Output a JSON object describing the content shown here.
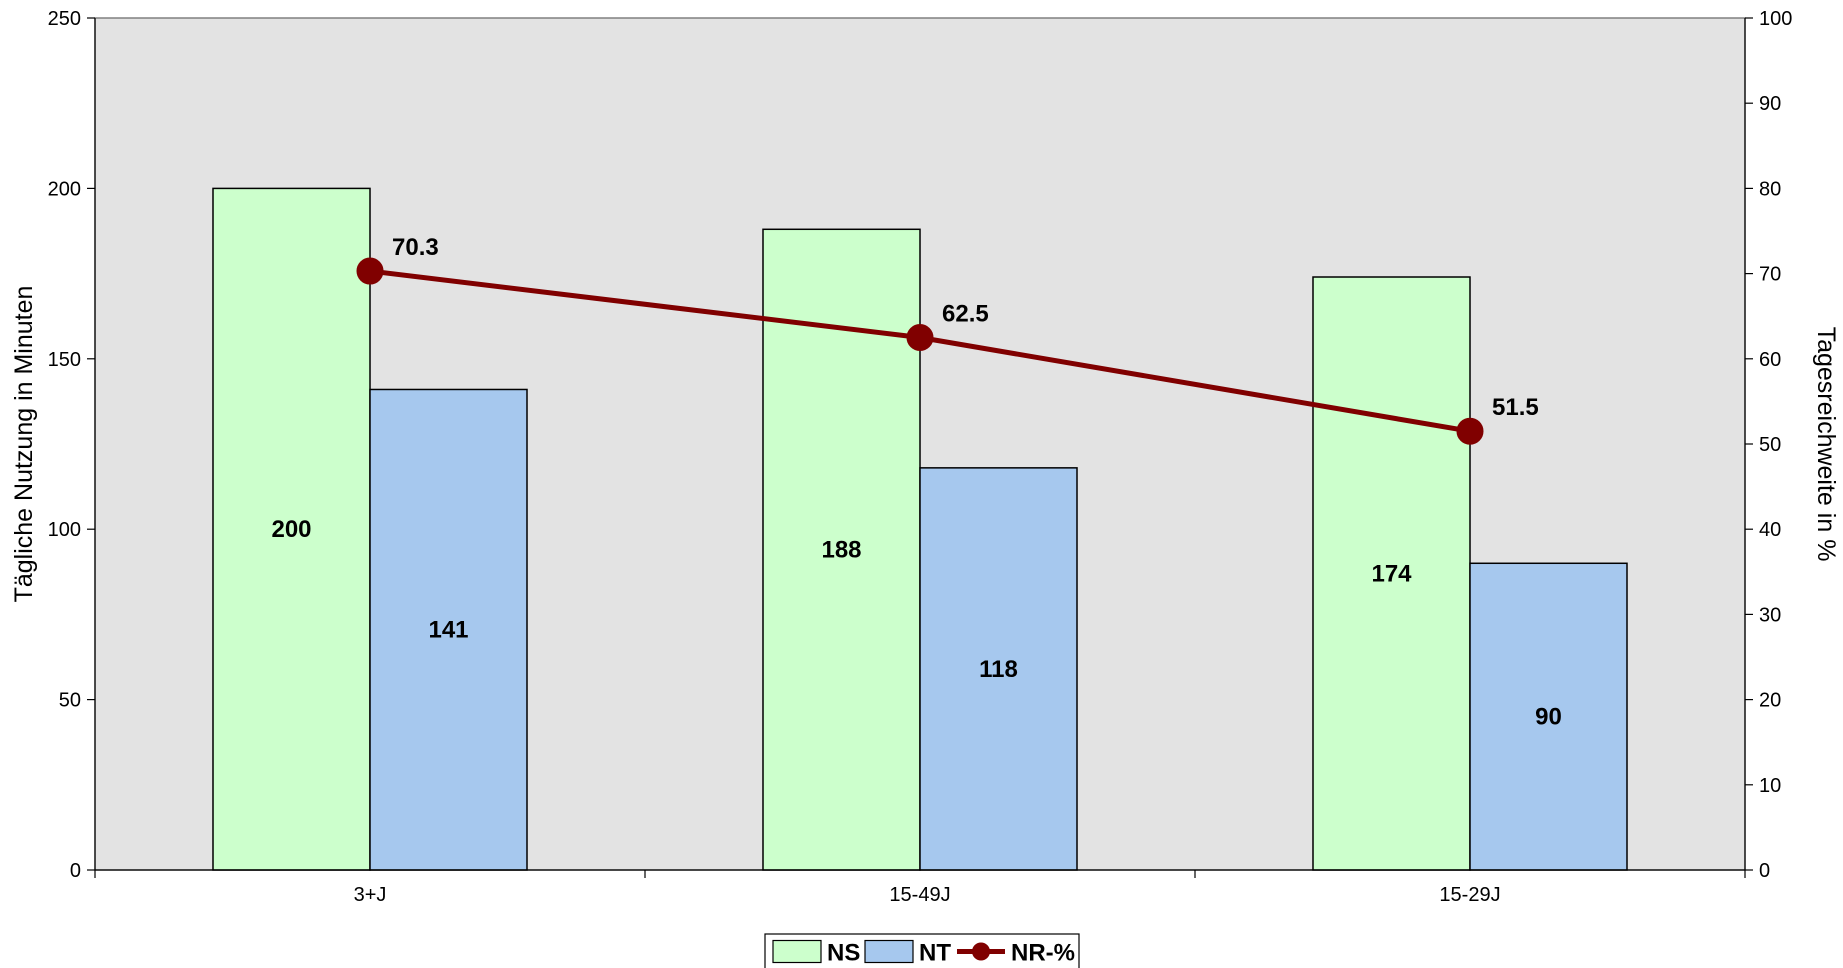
{
  "chart_data": {
    "type": "bar",
    "categories": [
      "3+J",
      "15-49J",
      "15-29J"
    ],
    "series": [
      {
        "name": "NS",
        "type": "bar",
        "axis": "left",
        "values": [
          200,
          188,
          174
        ],
        "color": "#ccffcc"
      },
      {
        "name": "NT",
        "type": "bar",
        "axis": "left",
        "values": [
          141,
          118,
          90
        ],
        "color": "#a6c8ee"
      },
      {
        "name": "NR-%",
        "type": "line",
        "axis": "right",
        "values": [
          70.3,
          62.5,
          51.5
        ],
        "color": "#800000"
      }
    ],
    "data_labels": {
      "NS": [
        "200",
        "188",
        "174"
      ],
      "NT": [
        "141",
        "118",
        "90"
      ],
      "NR-%": [
        "70.3",
        "62.5",
        "51.5"
      ]
    },
    "ylabel_left": "Tägliche Nutzung in Minuten",
    "ylabel_right": "Tagesreichweite in %",
    "ylim_left": [
      0,
      250
    ],
    "ylim_right": [
      0,
      100
    ],
    "yticks_left": [
      "0",
      "50",
      "100",
      "150",
      "200",
      "250"
    ],
    "yticks_right": [
      "0",
      "10",
      "20",
      "30",
      "40",
      "50",
      "60",
      "70",
      "80",
      "90",
      "100"
    ],
    "grid": false,
    "plot_background": "#e3e3e3",
    "legend_position": "bottom"
  }
}
